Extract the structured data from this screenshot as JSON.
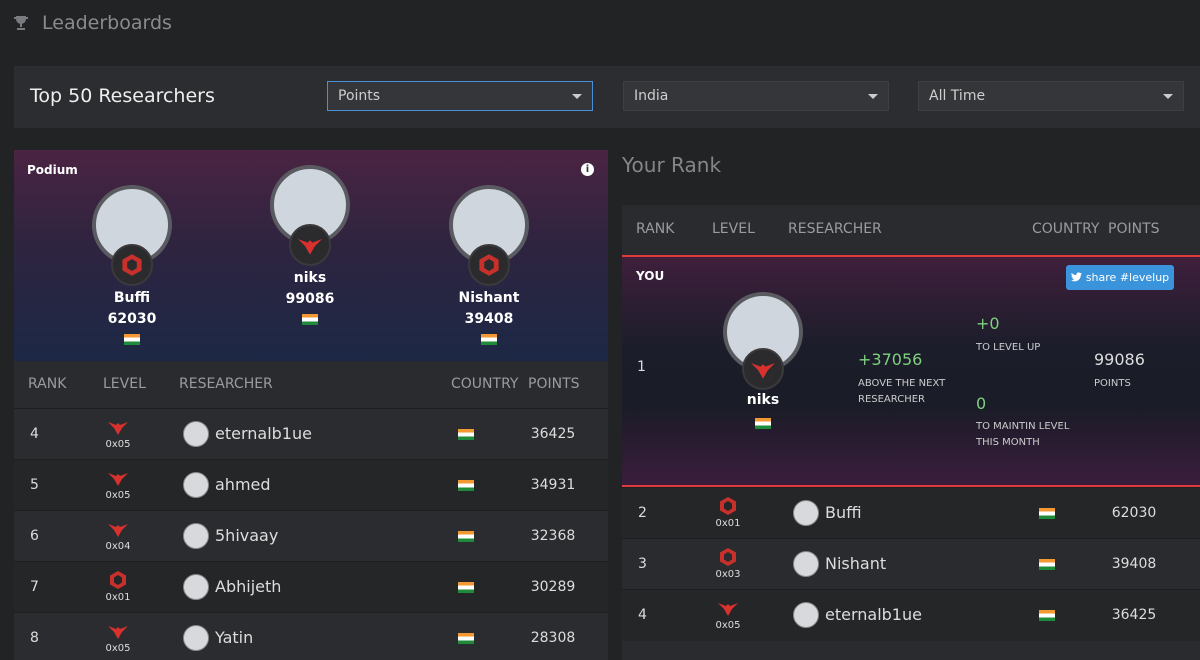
{
  "header": {
    "title": "Leaderboards"
  },
  "toolbar": {
    "title": "Top 50 Researchers",
    "filters": [
      "Points",
      "India",
      "All Time"
    ]
  },
  "podium": {
    "title": "Podium",
    "entries": [
      {
        "name": "Buffi",
        "points": 62030
      },
      {
        "name": "niks",
        "points": 99086
      },
      {
        "name": "Nishant",
        "points": 39408
      }
    ]
  },
  "leaderboard": {
    "columns": [
      "RANK",
      "LEVEL",
      "RESEARCHER",
      "COUNTRY",
      "POINTS"
    ],
    "rows": [
      {
        "rank": 4,
        "level": "0x05",
        "name": "eternalb1ue",
        "points": 36425
      },
      {
        "rank": 5,
        "level": "0x05",
        "name": "ahmed",
        "points": 34931
      },
      {
        "rank": 6,
        "level": "0x04",
        "name": "5hivaay",
        "points": 32368
      },
      {
        "rank": 7,
        "level": "0x01",
        "name": "Abhijeth",
        "points": 30289
      },
      {
        "rank": 8,
        "level": "0x05",
        "name": "Yatin",
        "points": 28308
      }
    ]
  },
  "your_rank": {
    "title": "Your Rank",
    "columns": [
      "RANK",
      "LEVEL",
      "RESEARCHER",
      "COUNTRY",
      "POINTS"
    ],
    "you": {
      "label": "YOU",
      "share": "share #levelup",
      "rank": 1,
      "name": "niks",
      "diff": "+37056",
      "diff_label": "ABOVE THE NEXT RESEARCHER",
      "level_up": "+0",
      "level_up_label": "TO LEVEL UP",
      "maintain": 0,
      "maintain_label": "TO MAINTIN LEVEL THIS MONTH",
      "points": 99086,
      "points_label": "POINTS"
    },
    "rows": [
      {
        "rank": 2,
        "level": "0x01",
        "name": "Buffi",
        "points": 62030
      },
      {
        "rank": 3,
        "level": "0x03",
        "name": "Nishant",
        "points": 39408
      },
      {
        "rank": 4,
        "level": "0x05",
        "name": "eternalb1ue",
        "points": 36425
      }
    ]
  }
}
